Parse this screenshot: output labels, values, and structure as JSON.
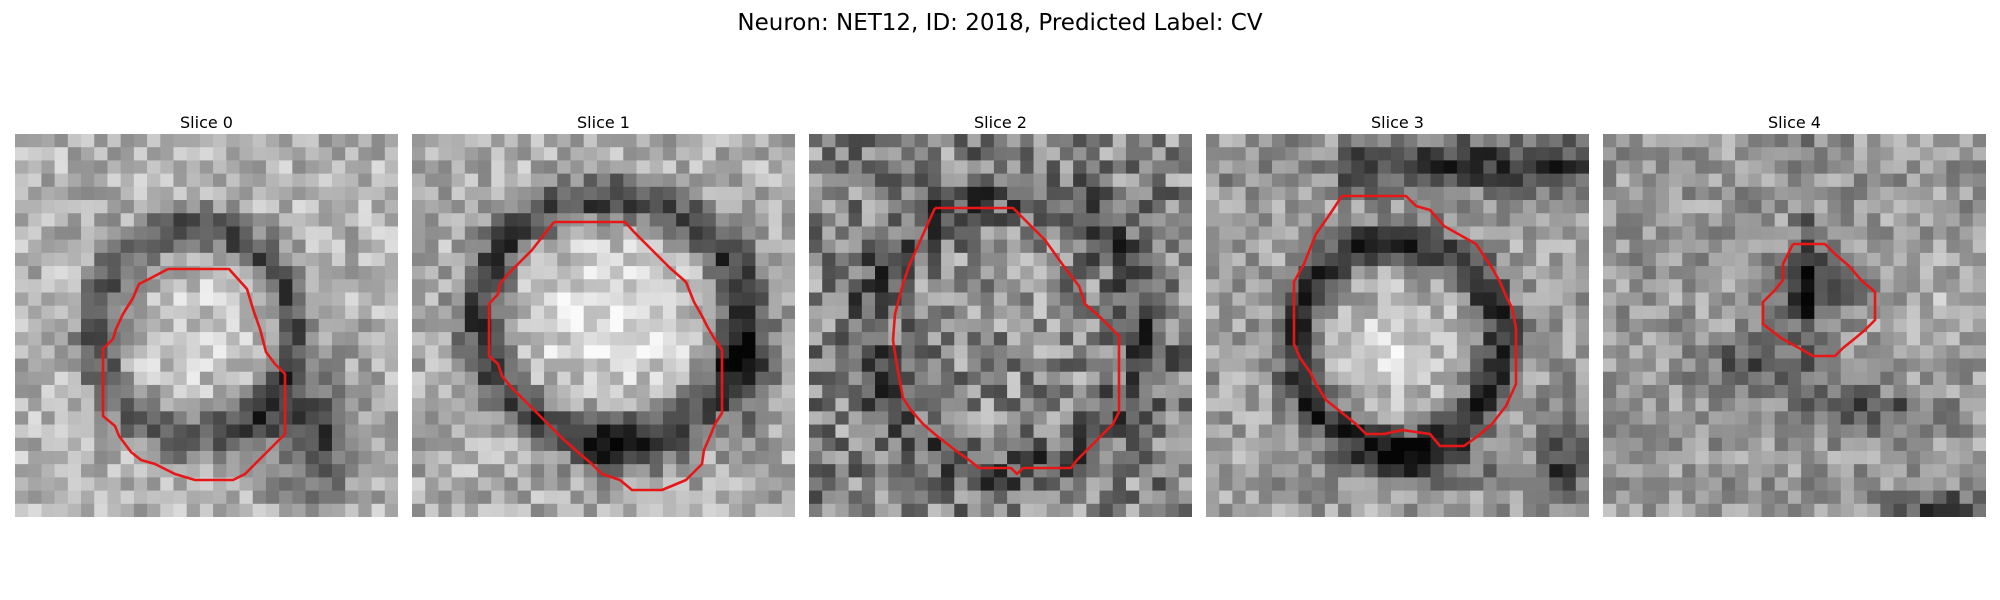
{
  "figure": {
    "title": "Neuron: NET12, ID: 2018, Predicted Label: CV"
  },
  "colors": {
    "contour": "#e81717",
    "background": "#ffffff"
  },
  "panels": [
    {
      "title": "Slice 0",
      "seed": 11,
      "mean": 0.7,
      "feature": "ring-offset"
    },
    {
      "title": "Slice 1",
      "seed": 23,
      "mean": 0.68,
      "feature": "bright-core"
    },
    {
      "title": "Slice 2",
      "seed": 37,
      "mean": 0.52,
      "feature": "noisy-ring"
    },
    {
      "title": "Slice 3",
      "seed": 41,
      "mean": 0.62,
      "feature": "double-ring"
    },
    {
      "title": "Slice 4",
      "seed": 59,
      "mean": 0.6,
      "feature": "small-dark"
    }
  ]
}
